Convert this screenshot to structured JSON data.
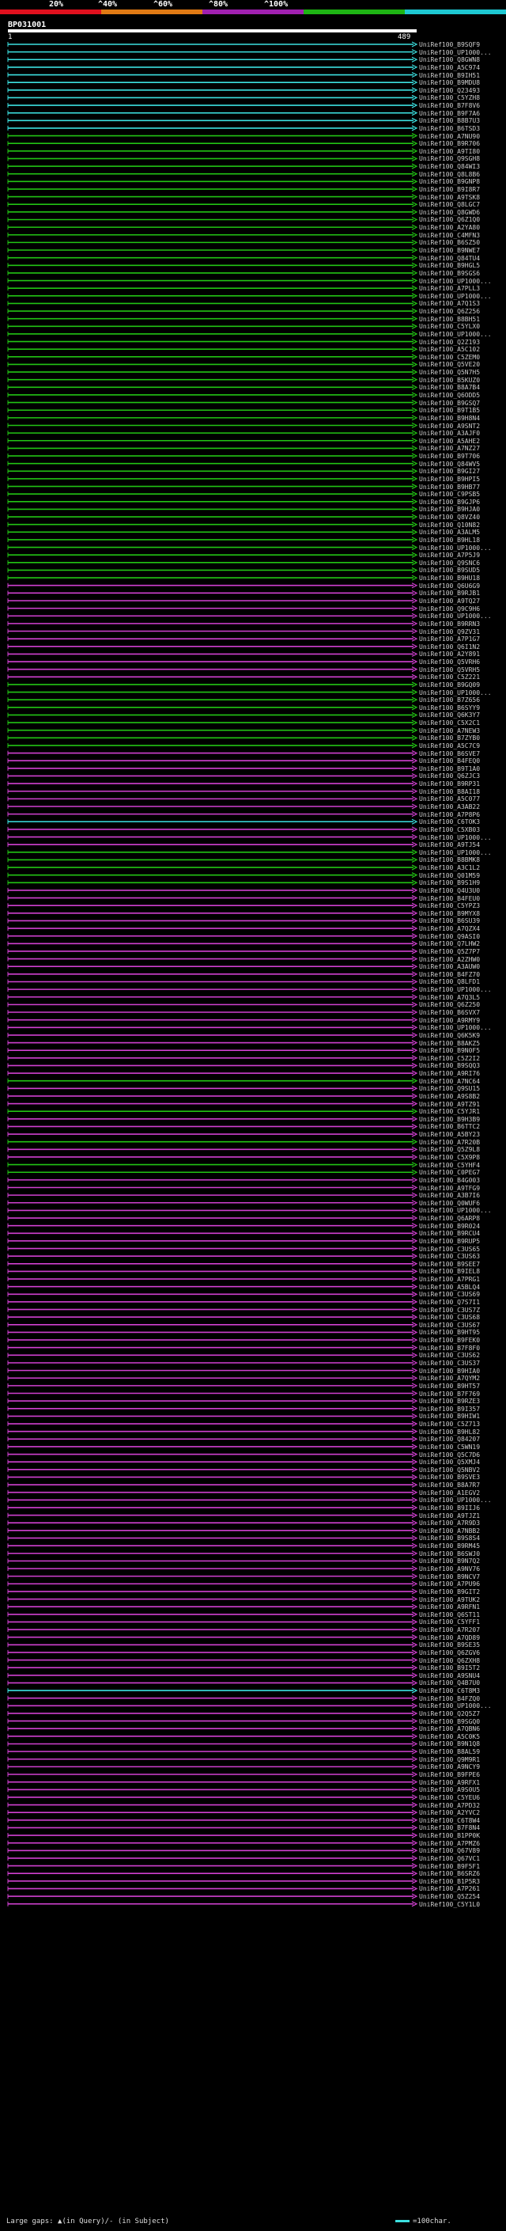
{
  "legend": {
    "labels": [
      "20%",
      "^40%",
      "^60%",
      "^80%",
      "^100%"
    ],
    "colors": [
      "#e0101e",
      "#e07a14",
      "#a020b0",
      "#1eb414",
      "#1ec8d2"
    ]
  },
  "query": {
    "title": "BP031001",
    "start": "1",
    "end": "489"
  },
  "footer": {
    "gaps": "Large gaps: ▲(in Query)/- (in Subject)",
    "scale": "=100char."
  },
  "hits": [
    {
      "id": "UniRef100_B9SQF9",
      "c": "cyan"
    },
    {
      "id": "UniRef100_UP1000...",
      "c": "cyan"
    },
    {
      "id": "UniRef100_Q8GWN8",
      "c": "cyan"
    },
    {
      "id": "UniRef100_A5C974",
      "c": "cyan"
    },
    {
      "id": "UniRef100_B9IH51",
      "c": "cyan"
    },
    {
      "id": "UniRef100_B9MDU8",
      "c": "cyan"
    },
    {
      "id": "UniRef100_Q23493",
      "c": "cyan"
    },
    {
      "id": "UniRef100_C5YZH8",
      "c": "cyan"
    },
    {
      "id": "UniRef100_B7F8V6",
      "c": "cyan"
    },
    {
      "id": "UniRef100_B9F7A6",
      "c": "cyan"
    },
    {
      "id": "UniRef100_B8B7U3",
      "c": "cyan"
    },
    {
      "id": "UniRef100_B6TSD3",
      "c": "cyan"
    },
    {
      "id": "UniRef100_A7NU90",
      "c": "green"
    },
    {
      "id": "UniRef100_B9R706",
      "c": "green"
    },
    {
      "id": "UniRef100_A9TI80",
      "c": "green"
    },
    {
      "id": "UniRef100_Q9SGH8",
      "c": "green"
    },
    {
      "id": "UniRef100_Q84WI3",
      "c": "green"
    },
    {
      "id": "UniRef100_Q8L8B6",
      "c": "green"
    },
    {
      "id": "UniRef100_B9GNP8",
      "c": "green"
    },
    {
      "id": "UniRef100_B9I8R7",
      "c": "green"
    },
    {
      "id": "UniRef100_A9TSK8",
      "c": "green"
    },
    {
      "id": "UniRef100_Q8LGC7",
      "c": "green"
    },
    {
      "id": "UniRef100_Q8GWD6",
      "c": "green"
    },
    {
      "id": "UniRef100_Q6Z1Q0",
      "c": "green"
    },
    {
      "id": "UniRef100_A2YA80",
      "c": "green"
    },
    {
      "id": "UniRef100_C4MFN3",
      "c": "green"
    },
    {
      "id": "UniRef100_B6SZ50",
      "c": "green"
    },
    {
      "id": "UniRef100_B9NWE7",
      "c": "green"
    },
    {
      "id": "UniRef100_Q84TU4",
      "c": "green"
    },
    {
      "id": "UniRef100_B9HGL5",
      "c": "green"
    },
    {
      "id": "UniRef100_B9SGS6",
      "c": "green"
    },
    {
      "id": "UniRef100_UP1000...",
      "c": "green"
    },
    {
      "id": "UniRef100_A7PLL3",
      "c": "green"
    },
    {
      "id": "UniRef100_UP1000...",
      "c": "green"
    },
    {
      "id": "UniRef100_A7Q1S3",
      "c": "green"
    },
    {
      "id": "UniRef100_Q6Z256",
      "c": "green"
    },
    {
      "id": "UniRef100_B8BH51",
      "c": "green"
    },
    {
      "id": "UniRef100_C5YLX0",
      "c": "green"
    },
    {
      "id": "UniRef100_UP1000...",
      "c": "green"
    },
    {
      "id": "UniRef100_Q2Z193",
      "c": "green"
    },
    {
      "id": "UniRef100_A5C102",
      "c": "green"
    },
    {
      "id": "UniRef100_C5ZEM0",
      "c": "green"
    },
    {
      "id": "UniRef100_Q5VE20",
      "c": "green"
    },
    {
      "id": "UniRef100_Q5N7H5",
      "c": "green"
    },
    {
      "id": "UniRef100_B5KUZ0",
      "c": "green"
    },
    {
      "id": "UniRef100_B8A7B4",
      "c": "green"
    },
    {
      "id": "UniRef100_Q6ODD5",
      "c": "green"
    },
    {
      "id": "UniRef100_B9GSQ7",
      "c": "green"
    },
    {
      "id": "UniRef100_B9T1B5",
      "c": "green"
    },
    {
      "id": "UniRef100_B9H8N4",
      "c": "green"
    },
    {
      "id": "UniRef100_A9SNT2",
      "c": "green"
    },
    {
      "id": "UniRef100_A3AJF0",
      "c": "green"
    },
    {
      "id": "UniRef100_A5AHE2",
      "c": "green"
    },
    {
      "id": "UniRef100_A7NZ27",
      "c": "green"
    },
    {
      "id": "UniRef100_B9T706",
      "c": "green"
    },
    {
      "id": "UniRef100_Q84WV5",
      "c": "green"
    },
    {
      "id": "UniRef100_B9GI27",
      "c": "green"
    },
    {
      "id": "UniRef100_B9HPI5",
      "c": "green"
    },
    {
      "id": "UniRef100_B9HB77",
      "c": "green"
    },
    {
      "id": "UniRef100_C9PSB5",
      "c": "green"
    },
    {
      "id": "UniRef100_B9GJP6",
      "c": "green"
    },
    {
      "id": "UniRef100_B9HJA0",
      "c": "green"
    },
    {
      "id": "UniRef100_Q8VZ40",
      "c": "green"
    },
    {
      "id": "UniRef100_Q10N82",
      "c": "green"
    },
    {
      "id": "UniRef100_A3ALM5",
      "c": "green"
    },
    {
      "id": "UniRef100_B9HL18",
      "c": "green"
    },
    {
      "id": "UniRef100_UP1000...",
      "c": "green"
    },
    {
      "id": "UniRef100_A7P5J9",
      "c": "green"
    },
    {
      "id": "UniRef100_Q9SNC6",
      "c": "green"
    },
    {
      "id": "UniRef100_B9SUD5",
      "c": "green"
    },
    {
      "id": "UniRef100_B9HU18",
      "c": "green"
    },
    {
      "id": "UniRef100_Q6U6G9",
      "c": "magenta"
    },
    {
      "id": "UniRef100_B9RJB1",
      "c": "magenta"
    },
    {
      "id": "UniRef100_A9TQ27",
      "c": "magenta"
    },
    {
      "id": "UniRef100_Q9C9H6",
      "c": "magenta"
    },
    {
      "id": "UniRef100_UP1000...",
      "c": "magenta"
    },
    {
      "id": "UniRef100_B9RRN3",
      "c": "magenta"
    },
    {
      "id": "UniRef100_Q9ZV31",
      "c": "magenta"
    },
    {
      "id": "UniRef100_A7P1G7",
      "c": "magenta"
    },
    {
      "id": "UniRef100_Q6I1N2",
      "c": "magenta"
    },
    {
      "id": "UniRef100_A2Y891",
      "c": "magenta"
    },
    {
      "id": "UniRef100_Q5VRH6",
      "c": "magenta"
    },
    {
      "id": "UniRef100_Q5VRH5",
      "c": "magenta"
    },
    {
      "id": "UniRef100_C5Z221",
      "c": "magenta"
    },
    {
      "id": "UniRef100_B9GQ09",
      "c": "green"
    },
    {
      "id": "UniRef100_UP1000...",
      "c": "green"
    },
    {
      "id": "UniRef100_B7Z656",
      "c": "green"
    },
    {
      "id": "UniRef100_B6SYY9",
      "c": "green"
    },
    {
      "id": "UniRef100_Q6K3Y7",
      "c": "green"
    },
    {
      "id": "UniRef100_C5X2C1",
      "c": "green"
    },
    {
      "id": "UniRef100_A7NEW3",
      "c": "green"
    },
    {
      "id": "UniRef100_B7ZYB0",
      "c": "green"
    },
    {
      "id": "UniRef100_A5C7C9",
      "c": "green"
    },
    {
      "id": "UniRef100_B6SVE7",
      "c": "magenta"
    },
    {
      "id": "UniRef100_B4FEQ0",
      "c": "magenta"
    },
    {
      "id": "UniRef100_B9T1A0",
      "c": "magenta"
    },
    {
      "id": "UniRef100_Q6ZJC3",
      "c": "magenta"
    },
    {
      "id": "UniRef100_B9RP31",
      "c": "magenta"
    },
    {
      "id": "UniRef100_B8AI18",
      "c": "magenta"
    },
    {
      "id": "UniRef100_A5C077",
      "c": "magenta"
    },
    {
      "id": "UniRef100_A3AB22",
      "c": "magenta"
    },
    {
      "id": "UniRef100_A7P8P6",
      "c": "magenta"
    },
    {
      "id": "UniRef100_C6TOK3",
      "c": "cyan"
    },
    {
      "id": "UniRef100_C5XB03",
      "c": "magenta"
    },
    {
      "id": "UniRef100_UP1000...",
      "c": "magenta"
    },
    {
      "id": "UniRef100_A9TJ54",
      "c": "magenta"
    },
    {
      "id": "UniRef100_UP1000...",
      "c": "green"
    },
    {
      "id": "UniRef100_B8BMK8",
      "c": "green"
    },
    {
      "id": "UniRef100_A3C1L2",
      "c": "green"
    },
    {
      "id": "UniRef100_Q01M59",
      "c": "green"
    },
    {
      "id": "UniRef100_B9S1H9",
      "c": "green"
    },
    {
      "id": "UniRef100_Q4U3U0",
      "c": "magenta"
    },
    {
      "id": "UniRef100_B4FEU0",
      "c": "magenta"
    },
    {
      "id": "UniRef100_C5YPZ3",
      "c": "magenta"
    },
    {
      "id": "UniRef100_B9MYX8",
      "c": "magenta"
    },
    {
      "id": "UniRef100_B6SU39",
      "c": "magenta"
    },
    {
      "id": "UniRef100_A7QZX4",
      "c": "magenta"
    },
    {
      "id": "UniRef100_Q9ASI0",
      "c": "magenta"
    },
    {
      "id": "UniRef100_Q7LHW2",
      "c": "magenta"
    },
    {
      "id": "UniRef100_Q5Z7P7",
      "c": "magenta"
    },
    {
      "id": "UniRef100_A2ZHW0",
      "c": "magenta"
    },
    {
      "id": "UniRef100_A3AUW0",
      "c": "magenta"
    },
    {
      "id": "UniRef100_B4FZ70",
      "c": "magenta"
    },
    {
      "id": "UniRef100_Q8LFD1",
      "c": "magenta"
    },
    {
      "id": "UniRef100_UP1000...",
      "c": "magenta"
    },
    {
      "id": "UniRef100_A7Q3L5",
      "c": "magenta"
    },
    {
      "id": "UniRef100_Q6Z250",
      "c": "magenta"
    },
    {
      "id": "UniRef100_B6SVX7",
      "c": "magenta"
    },
    {
      "id": "UniRef100_A9RMY9",
      "c": "magenta"
    },
    {
      "id": "UniRef100_UP1000...",
      "c": "magenta"
    },
    {
      "id": "UniRef100_Q6K5K9",
      "c": "magenta"
    },
    {
      "id": "UniRef100_B8AKZ5",
      "c": "magenta"
    },
    {
      "id": "UniRef100_B9N0F5",
      "c": "magenta"
    },
    {
      "id": "UniRef100_C5Z2I2",
      "c": "magenta"
    },
    {
      "id": "UniRef100_B9SQQ3",
      "c": "magenta"
    },
    {
      "id": "UniRef100_A9RI76",
      "c": "magenta"
    },
    {
      "id": "UniRef100_A7NC64",
      "c": "green"
    },
    {
      "id": "UniRef100_Q9SU15",
      "c": "magenta"
    },
    {
      "id": "UniRef100_A9S8B2",
      "c": "magenta"
    },
    {
      "id": "UniRef100_A9TZ91",
      "c": "magenta"
    },
    {
      "id": "UniRef100_C5YJR1",
      "c": "green"
    },
    {
      "id": "UniRef100_B9H3B9",
      "c": "magenta"
    },
    {
      "id": "UniRef100_B6TTC2",
      "c": "magenta"
    },
    {
      "id": "UniRef100_A5BY23",
      "c": "magenta"
    },
    {
      "id": "UniRef100_A7R20B",
      "c": "green"
    },
    {
      "id": "UniRef100_Q5Z9L8",
      "c": "magenta"
    },
    {
      "id": "UniRef100_C5X9P8",
      "c": "magenta"
    },
    {
      "id": "UniRef100_C5YHF4",
      "c": "green"
    },
    {
      "id": "UniRef100_C0PEG7",
      "c": "green"
    },
    {
      "id": "UniRef100_B4G003",
      "c": "magenta"
    },
    {
      "id": "UniRef100_A9TFG9",
      "c": "magenta"
    },
    {
      "id": "UniRef100_A3B7I6",
      "c": "magenta"
    },
    {
      "id": "UniRef100_Q0WUF6",
      "c": "magenta"
    },
    {
      "id": "UniRef100_UP1000...",
      "c": "magenta"
    },
    {
      "id": "UniRef100_Q6ARP8",
      "c": "magenta"
    },
    {
      "id": "UniRef100_B9R024",
      "c": "magenta"
    },
    {
      "id": "UniRef100_B9RCU4",
      "c": "magenta"
    },
    {
      "id": "UniRef100_B9RUP5",
      "c": "magenta"
    },
    {
      "id": "UniRef100_C3US65",
      "c": "magenta"
    },
    {
      "id": "UniRef100_C3US63",
      "c": "magenta"
    },
    {
      "id": "UniRef100_B9SEE7",
      "c": "magenta"
    },
    {
      "id": "UniRef100_B9IEL8",
      "c": "magenta"
    },
    {
      "id": "UniRef100_A7PRG1",
      "c": "magenta"
    },
    {
      "id": "UniRef100_A5BLQ4",
      "c": "magenta"
    },
    {
      "id": "UniRef100_C3US69",
      "c": "magenta"
    },
    {
      "id": "UniRef100_Q7S7I1",
      "c": "magenta"
    },
    {
      "id": "UniRef100_C3US7Z",
      "c": "magenta"
    },
    {
      "id": "UniRef100_C3US68",
      "c": "magenta"
    },
    {
      "id": "UniRef100_C3US67",
      "c": "magenta"
    },
    {
      "id": "UniRef100_B9HT95",
      "c": "magenta"
    },
    {
      "id": "UniRef100_B9FEK0",
      "c": "magenta"
    },
    {
      "id": "UniRef100_B7F8F0",
      "c": "magenta"
    },
    {
      "id": "UniRef100_C3US62",
      "c": "magenta"
    },
    {
      "id": "UniRef100_C3US37",
      "c": "magenta"
    },
    {
      "id": "UniRef100_B9HIA0",
      "c": "magenta"
    },
    {
      "id": "UniRef100_A7QYM2",
      "c": "magenta"
    },
    {
      "id": "UniRef100_B9HT57",
      "c": "magenta"
    },
    {
      "id": "UniRef100_B7F769",
      "c": "magenta"
    },
    {
      "id": "UniRef100_B9RZE3",
      "c": "magenta"
    },
    {
      "id": "UniRef100_B9I357",
      "c": "magenta"
    },
    {
      "id": "UniRef100_B9HIW1",
      "c": "magenta"
    },
    {
      "id": "UniRef100_C5Z713",
      "c": "magenta"
    },
    {
      "id": "UniRef100_B9HL82",
      "c": "magenta"
    },
    {
      "id": "UniRef100_Q84207",
      "c": "magenta"
    },
    {
      "id": "UniRef100_C5WN19",
      "c": "magenta"
    },
    {
      "id": "UniRef100_Q5C7D6",
      "c": "magenta"
    },
    {
      "id": "UniRef100_Q5XMJ4",
      "c": "magenta"
    },
    {
      "id": "UniRef100_Q5NBV2",
      "c": "magenta"
    },
    {
      "id": "UniRef100_B9SVE3",
      "c": "magenta"
    },
    {
      "id": "UniRef100_B8A7R7",
      "c": "magenta"
    },
    {
      "id": "UniRef100_A1EGV2",
      "c": "magenta"
    },
    {
      "id": "UniRef100_UP1000...",
      "c": "magenta"
    },
    {
      "id": "UniRef100_B9IIJ6",
      "c": "magenta"
    },
    {
      "id": "UniRef100_A9TJZ1",
      "c": "magenta"
    },
    {
      "id": "UniRef100_A7R9D3",
      "c": "magenta"
    },
    {
      "id": "UniRef100_A7NBB2",
      "c": "magenta"
    },
    {
      "id": "UniRef100_B9S8S4",
      "c": "magenta"
    },
    {
      "id": "UniRef100_B9RM45",
      "c": "magenta"
    },
    {
      "id": "UniRef100_B6SWJ0",
      "c": "magenta"
    },
    {
      "id": "UniRef100_B9N7Q2",
      "c": "magenta"
    },
    {
      "id": "UniRef100_A9NV76",
      "c": "magenta"
    },
    {
      "id": "UniRef100_B9NCV7",
      "c": "magenta"
    },
    {
      "id": "UniRef100_A7PU96",
      "c": "magenta"
    },
    {
      "id": "UniRef100_B9GIT2",
      "c": "magenta"
    },
    {
      "id": "UniRef100_A9TUK2",
      "c": "magenta"
    },
    {
      "id": "UniRef100_A9RFN1",
      "c": "magenta"
    },
    {
      "id": "UniRef100_Q6ST11",
      "c": "magenta"
    },
    {
      "id": "UniRef100_C5YFF1",
      "c": "magenta"
    },
    {
      "id": "UniRef100_A7R207",
      "c": "magenta"
    },
    {
      "id": "UniRef100_A7QD89",
      "c": "magenta"
    },
    {
      "id": "UniRef100_B9SE35",
      "c": "magenta"
    },
    {
      "id": "UniRef100_Q6ZGV6",
      "c": "magenta"
    },
    {
      "id": "UniRef100_Q6ZXH8",
      "c": "magenta"
    },
    {
      "id": "UniRef100_B9I5T2",
      "c": "magenta"
    },
    {
      "id": "UniRef100_A9SNU4",
      "c": "magenta"
    },
    {
      "id": "UniRef100_Q4B7U0",
      "c": "magenta"
    },
    {
      "id": "UniRef100_C6T8M3",
      "c": "cyan"
    },
    {
      "id": "UniRef100_B4FZQ0",
      "c": "magenta"
    },
    {
      "id": "UniRef100_UP1000...",
      "c": "magenta"
    },
    {
      "id": "UniRef100_Q2Q5Z7",
      "c": "magenta"
    },
    {
      "id": "UniRef100_B9SGQ0",
      "c": "magenta"
    },
    {
      "id": "UniRef100_A7QBN6",
      "c": "magenta"
    },
    {
      "id": "UniRef100_A5C0K5",
      "c": "magenta"
    },
    {
      "id": "UniRef100_B9N1Q8",
      "c": "magenta"
    },
    {
      "id": "UniRef100_B8AL59",
      "c": "magenta"
    },
    {
      "id": "UniRef100_Q9M9R1",
      "c": "magenta"
    },
    {
      "id": "UniRef100_A9NCY9",
      "c": "magenta"
    },
    {
      "id": "UniRef100_B9FPE6",
      "c": "magenta"
    },
    {
      "id": "UniRef100_A9RFX1",
      "c": "magenta"
    },
    {
      "id": "UniRef100_A9S0U5",
      "c": "magenta"
    },
    {
      "id": "UniRef100_C5YEU6",
      "c": "magenta"
    },
    {
      "id": "UniRef100_A7PD32",
      "c": "magenta"
    },
    {
      "id": "UniRef100_A2YVC2",
      "c": "magenta"
    },
    {
      "id": "UniRef100_C6T8W4",
      "c": "magenta"
    },
    {
      "id": "UniRef100_B7F8N4",
      "c": "magenta"
    },
    {
      "id": "UniRef100_B1PP0K",
      "c": "magenta"
    },
    {
      "id": "UniRef100_A7PMZ6",
      "c": "magenta"
    },
    {
      "id": "UniRef100_Q67V89",
      "c": "magenta"
    },
    {
      "id": "UniRef100_Q67VC1",
      "c": "magenta"
    },
    {
      "id": "UniRef100_B9F5F1",
      "c": "magenta"
    },
    {
      "id": "UniRef100_B6SRZ6",
      "c": "magenta"
    },
    {
      "id": "UniRef100_B1P5R3",
      "c": "magenta"
    },
    {
      "id": "UniRef100_A7P261",
      "c": "magenta"
    },
    {
      "id": "UniRef100_Q5Z254",
      "c": "magenta"
    },
    {
      "id": "UniRef100_C5Y1L0",
      "c": "magenta"
    }
  ]
}
